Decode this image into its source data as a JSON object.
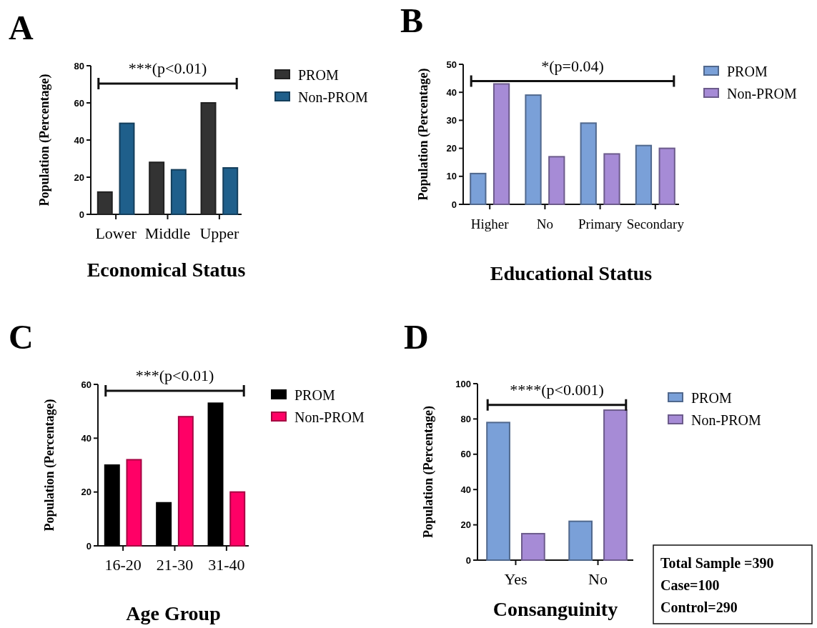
{
  "chart_data": [
    {
      "type": "bar",
      "title": "A",
      "xlabel": "Economical Status",
      "ylabel": "Population (Percentage)",
      "categories": [
        "Lower",
        "Middle",
        "Upper"
      ],
      "series": [
        {
          "name": "PROM",
          "color": "#333333",
          "values": [
            12,
            28,
            60
          ]
        },
        {
          "name": "Non-PROM",
          "color": "#1f5f8b",
          "values": [
            49,
            24,
            25
          ]
        }
      ],
      "ylim": [
        0,
        80
      ],
      "yticks": [
        0,
        20,
        40,
        60,
        80
      ],
      "legend": "right",
      "annotations": [
        "***(p<0.01)"
      ]
    },
    {
      "type": "bar",
      "title": "B",
      "xlabel": "Educational Status",
      "ylabel": "Population (Percentage)",
      "categories": [
        "Higher",
        "No",
        "Primary",
        "Secondary"
      ],
      "series": [
        {
          "name": "PROM",
          "color": "#7aa0d8",
          "values": [
            11,
            39,
            29,
            21
          ]
        },
        {
          "name": "Non-PROM",
          "color": "#a68bd6",
          "values": [
            43,
            17,
            18,
            20
          ]
        }
      ],
      "ylim": [
        0,
        50
      ],
      "yticks": [
        0,
        10,
        20,
        30,
        40,
        50
      ],
      "legend": "right",
      "annotations": [
        "*(p=0.04)"
      ]
    },
    {
      "type": "bar",
      "title": "C",
      "xlabel": "Age Group",
      "ylabel": "Population (Percentage)",
      "categories": [
        "16-20",
        "21-30",
        "31-40"
      ],
      "series": [
        {
          "name": "PROM",
          "color": "#000000",
          "values": [
            30,
            16,
            53
          ]
        },
        {
          "name": "Non-PROM",
          "color": "#ff0066",
          "values": [
            32,
            48,
            20
          ]
        }
      ],
      "ylim": [
        0,
        60
      ],
      "yticks": [
        0,
        20,
        40,
        60
      ],
      "legend": "right",
      "annotations": [
        "***(p<0.01)"
      ]
    },
    {
      "type": "bar",
      "title": "D",
      "xlabel": "Consanguinity",
      "ylabel": "Population (Percentage)",
      "categories": [
        "Yes",
        "No"
      ],
      "series": [
        {
          "name": "PROM",
          "color": "#7aa0d8",
          "values": [
            78,
            22
          ]
        },
        {
          "name": "Non-PROM",
          "color": "#a68bd6",
          "values": [
            15,
            85
          ]
        }
      ],
      "ylim": [
        0,
        100
      ],
      "yticks": [
        0,
        20,
        40,
        60,
        80,
        100
      ],
      "legend": "right",
      "annotations": [
        "****(p<0.001)",
        "Total Sample =390",
        "Case=100",
        "Control=290"
      ]
    }
  ]
}
